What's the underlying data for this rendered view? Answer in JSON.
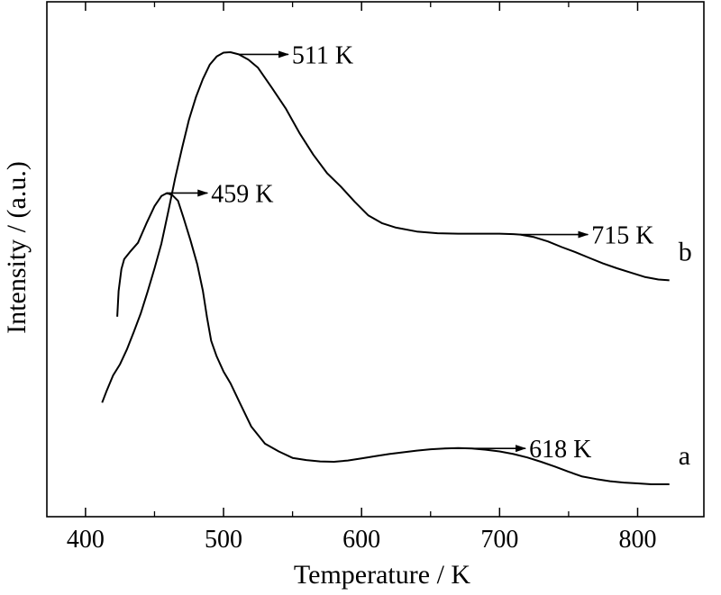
{
  "chart_data": {
    "type": "line",
    "title": "",
    "xlabel": "Temperature / K",
    "ylabel": "Intensity / (a.u.)",
    "xlim": [
      372,
      848
    ],
    "ylim": [
      0,
      1
    ],
    "x_ticks": [
      400,
      500,
      600,
      700,
      800
    ],
    "x_tick_labels": [
      "400",
      "500",
      "600",
      "700",
      "800"
    ],
    "y_ticks_labeled": false,
    "grid": false,
    "series": [
      {
        "name": "a",
        "x": [
          423,
          424,
          426,
          428,
          432,
          438,
          444,
          450,
          455,
          459,
          463,
          467,
          471,
          476,
          481,
          485,
          488,
          491,
          495,
          500,
          505,
          512,
          520,
          530,
          540,
          550,
          560,
          570,
          580,
          590,
          600,
          610,
          620,
          630,
          640,
          650,
          660,
          670,
          680,
          690,
          700,
          710,
          720,
          730,
          740,
          750,
          760,
          770,
          780,
          790,
          800,
          810,
          820,
          823
        ],
        "y": [
          0.388,
          0.447,
          0.498,
          0.521,
          0.537,
          0.559,
          0.603,
          0.644,
          0.667,
          0.674,
          0.669,
          0.656,
          0.617,
          0.565,
          0.509,
          0.448,
          0.386,
          0.332,
          0.296,
          0.261,
          0.234,
          0.187,
          0.134,
          0.094,
          0.076,
          0.061,
          0.056,
          0.053,
          0.052,
          0.055,
          0.06,
          0.065,
          0.07,
          0.074,
          0.078,
          0.081,
          0.083,
          0.084,
          0.083,
          0.08,
          0.076,
          0.07,
          0.062,
          0.052,
          0.041,
          0.029,
          0.018,
          0.012,
          0.007,
          0.004,
          0.002,
          0.0,
          0.0,
          0.0
        ]
      },
      {
        "name": "b",
        "x": [
          412,
          415,
          420,
          425,
          430,
          435,
          440,
          445,
          450,
          455,
          460,
          465,
          470,
          475,
          480,
          485,
          490,
          495,
          500,
          505,
          511,
          518,
          525,
          535,
          545,
          555,
          565,
          575,
          585,
          595,
          605,
          615,
          625,
          640,
          655,
          670,
          685,
          700,
          710,
          715,
          725,
          735,
          745,
          755,
          765,
          775,
          785,
          795,
          805,
          815,
          823
        ],
        "y": [
          0.189,
          0.214,
          0.252,
          0.278,
          0.312,
          0.353,
          0.395,
          0.446,
          0.5,
          0.557,
          0.632,
          0.709,
          0.779,
          0.844,
          0.896,
          0.938,
          0.971,
          0.99,
          0.999,
          1.0,
          0.995,
          0.983,
          0.964,
          0.918,
          0.87,
          0.813,
          0.763,
          0.72,
          0.689,
          0.654,
          0.622,
          0.604,
          0.594,
          0.585,
          0.581,
          0.58,
          0.58,
          0.58,
          0.579,
          0.578,
          0.572,
          0.562,
          0.549,
          0.537,
          0.524,
          0.511,
          0.5,
          0.49,
          0.48,
          0.474,
          0.472
        ]
      }
    ],
    "annotations": [
      {
        "text": "459 K",
        "series": "a",
        "x": 459
      },
      {
        "text": "511 K",
        "series": "b",
        "x": 511
      },
      {
        "text": "618 K",
        "series": "a",
        "x": 660
      },
      {
        "text": "715 K",
        "series": "b",
        "x": 715
      }
    ]
  }
}
